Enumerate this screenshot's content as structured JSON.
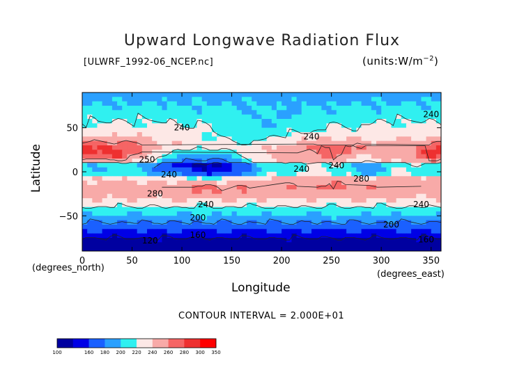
{
  "chart_data": {
    "type": "heatmap",
    "title": "Upward Longwave Radiation Flux",
    "dataset": "[ULWRF_1992-06_NCEP.nc]",
    "units": "(units:W/m^2)",
    "xlabel": "Longitude",
    "ylabel": "Latitude",
    "x_units_label": "(degrees_east)",
    "y_units_label": "(degrees_north)",
    "xlim": [
      0,
      360
    ],
    "ylim": [
      -90,
      90
    ],
    "x_ticks": [
      0,
      50,
      100,
      150,
      200,
      250,
      300,
      350
    ],
    "y_ticks": [
      50,
      0,
      -50
    ],
    "contour_interval_text": "CONTOUR INTERVAL = 2.000E+01",
    "colorbar": {
      "levels": [
        100,
        160,
        180,
        200,
        220,
        240,
        260,
        280,
        300,
        350
      ],
      "colors": [
        "#0000a0",
        "#0000e6",
        "#1a60ff",
        "#2aa0ff",
        "#30f0f0",
        "#fde8e6",
        "#f8aaa8",
        "#f56565",
        "#ee3030",
        "#ff0000"
      ]
    },
    "contour_labels": [
      {
        "text": "240",
        "lon": 100,
        "lat": 50
      },
      {
        "text": "240",
        "lon": 230,
        "lat": 40
      },
      {
        "text": "240",
        "lon": 350,
        "lat": 65
      },
      {
        "text": "250",
        "lon": 65,
        "lat": 14
      },
      {
        "text": "240",
        "lon": 87,
        "lat": -3
      },
      {
        "text": "240",
        "lon": 220,
        "lat": 3
      },
      {
        "text": "240",
        "lon": 255,
        "lat": 7
      },
      {
        "text": "280",
        "lon": 280,
        "lat": -8
      },
      {
        "text": "280",
        "lon": 73,
        "lat": -25
      },
      {
        "text": "240",
        "lon": 124,
        "lat": -37
      },
      {
        "text": "240",
        "lon": 340,
        "lat": -37
      },
      {
        "text": "200",
        "lon": 116,
        "lat": -52
      },
      {
        "text": "200",
        "lon": 310,
        "lat": -60
      },
      {
        "text": "160",
        "lon": 116,
        "lat": -72
      },
      {
        "text": "160",
        "lon": 345,
        "lat": -77
      },
      {
        "text": "120",
        "lon": 68,
        "lat": -78
      }
    ]
  }
}
